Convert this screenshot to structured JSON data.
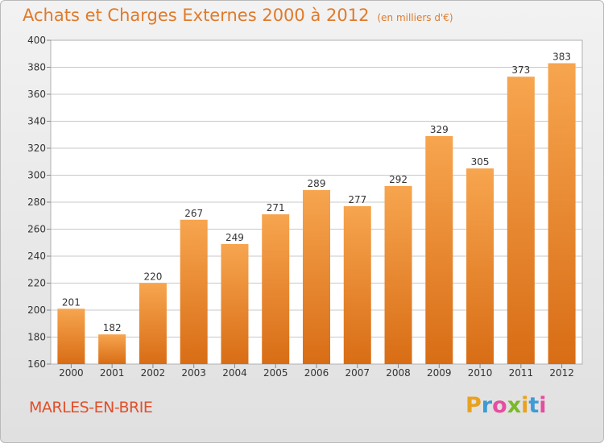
{
  "header": {
    "title": "Achats et Charges Externes 2000 à 2012",
    "unit": "(en milliers d'€)"
  },
  "footer": {
    "commune": "MARLES-EN-BRIE",
    "logo": [
      "P",
      "r",
      "o",
      "x",
      "i",
      "t",
      "i"
    ],
    "logo_colors": [
      "#e8a21f",
      "#3d9bd6",
      "#e64da0",
      "#7ab929",
      "#e8a21f",
      "#3d9bd6",
      "#e64da0"
    ]
  },
  "chart_data": {
    "type": "bar",
    "title": "Achats et Charges Externes 2000 à 2012",
    "xlabel": "",
    "ylabel": "",
    "categories": [
      "2000",
      "2001",
      "2002",
      "2003",
      "2004",
      "2005",
      "2006",
      "2007",
      "2008",
      "2009",
      "2010",
      "2011",
      "2012"
    ],
    "values": [
      201,
      182,
      220,
      267,
      249,
      271,
      289,
      277,
      292,
      329,
      305,
      373,
      383
    ],
    "ylim": [
      160,
      400
    ],
    "yticks": [
      160,
      180,
      200,
      220,
      240,
      260,
      280,
      300,
      320,
      340,
      360,
      380,
      400
    ],
    "grid": true,
    "legend": "none",
    "colors": {
      "bar_top": "#f7a54f",
      "bar_bottom": "#d86d15",
      "grid": "#c8c8c8",
      "axis": "#888888"
    }
  }
}
